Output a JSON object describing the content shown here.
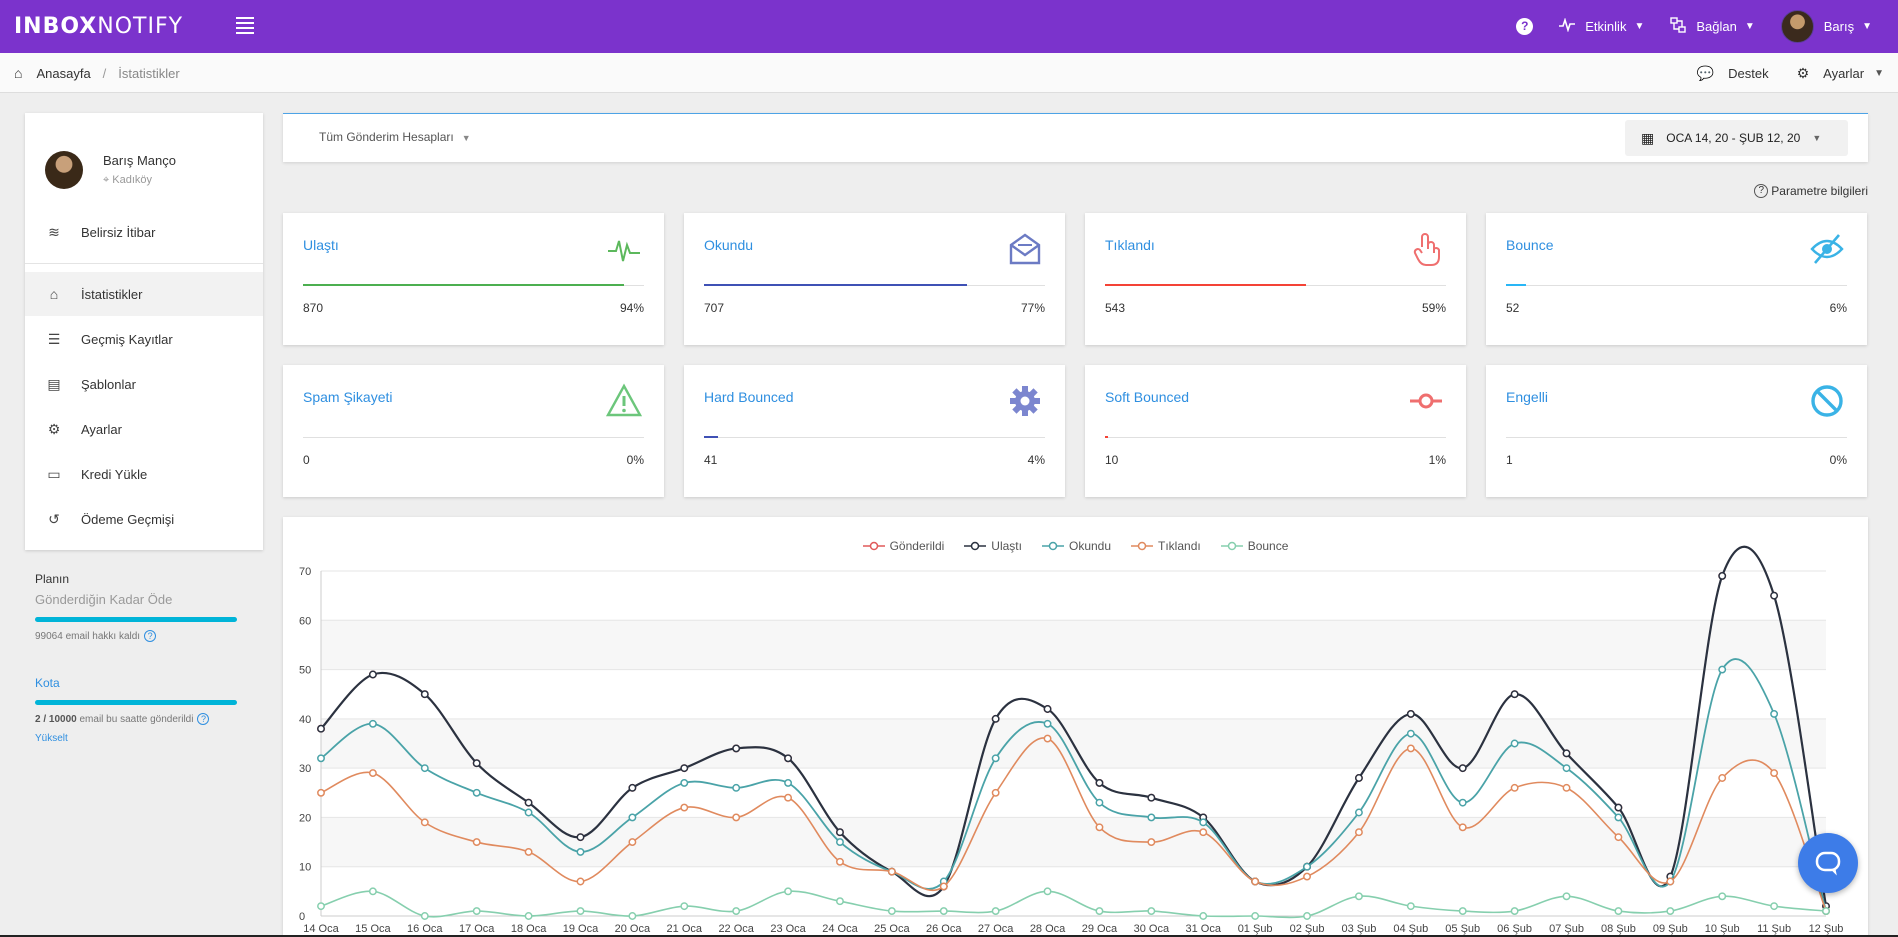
{
  "topbar": {
    "logo_bold": "INB",
    "logo_o": "O",
    "logo_x": "X",
    "logo_light": "NOTIFY",
    "help": "?",
    "activity_label": "Etkinlik",
    "connect_label": "Bağlan",
    "user_label": "Barış",
    "icons": [
      "menu-icon",
      "help-icon",
      "activity-icon",
      "connect-icon",
      "avatar",
      "chevron-down-icon"
    ]
  },
  "breadcrumb": {
    "home": "Anasayfa",
    "current": "İstatistikler",
    "support": "Destek",
    "settings": "Ayarlar"
  },
  "sidebar": {
    "user_name": "Barış Manço",
    "user_location": "Kadıköy",
    "items": [
      {
        "label": "Belirsiz İtibar",
        "icon": "reputation-icon",
        "glyph": "≋"
      },
      {
        "label": "İstatistikler",
        "icon": "home-icon",
        "glyph": "⌂"
      },
      {
        "label": "Geçmiş Kayıtlar",
        "icon": "list-icon",
        "glyph": "☰"
      },
      {
        "label": "Şablonlar",
        "icon": "template-icon",
        "glyph": "▤"
      },
      {
        "label": "Ayarlar",
        "icon": "gear-icon",
        "glyph": "⚙"
      },
      {
        "label": "Kredi Yükle",
        "icon": "credit-card-icon",
        "glyph": "▭"
      },
      {
        "label": "Ödeme Geçmişi",
        "icon": "history-icon",
        "glyph": "↺"
      }
    ],
    "active_index": 1
  },
  "plan": {
    "label": "Planın",
    "name": "Gönderdiğin Kadar Öde",
    "credits_text": "99064 email hakkı kaldı",
    "quota_label": "Kota",
    "quota_used": "2 / 10000",
    "quota_text": " email bu saatte gönderildi",
    "upgrade": "Yükselt",
    "credits_fill": 1.0,
    "quota_fill": 1.0
  },
  "filter": {
    "accounts": "Tüm Gönderim Hesapları",
    "date_range": "OCA 14, 20 - ŞUB 12, 20",
    "param_info": "Parametre bilgileri"
  },
  "stats": [
    {
      "title": "Ulaştı",
      "value": "870",
      "percent": "94%",
      "fill": 0.94,
      "color": "#4caf50",
      "icon": "pulse-icon"
    },
    {
      "title": "Okundu",
      "value": "707",
      "percent": "77%",
      "fill": 0.77,
      "color": "#3f51b5",
      "icon": "open-mail-icon"
    },
    {
      "title": "Tıklandı",
      "value": "543",
      "percent": "59%",
      "fill": 0.59,
      "color": "#f44336",
      "icon": "click-hand-icon"
    },
    {
      "title": "Bounce",
      "value": "52",
      "percent": "6%",
      "fill": 0.06,
      "color": "#29b6f6",
      "icon": "eye-off-icon"
    },
    {
      "title": "Spam Şikayeti",
      "value": "0",
      "percent": "0%",
      "fill": 0.0,
      "color": "#66bb6a",
      "icon": "warning-icon"
    },
    {
      "title": "Hard Bounced",
      "value": "41",
      "percent": "4%",
      "fill": 0.04,
      "color": "#3f51b5",
      "icon": "gear-icon"
    },
    {
      "title": "Soft Bounced",
      "value": "10",
      "percent": "1%",
      "fill": 0.01,
      "color": "#f44336",
      "icon": "commit-icon"
    },
    {
      "title": "Engelli",
      "value": "1",
      "percent": "0%",
      "fill": 0.0,
      "color": "#29b6f6",
      "icon": "block-icon"
    }
  ],
  "chart_data": {
    "type": "line",
    "x": [
      "14 Oca",
      "15 Oca",
      "16 Oca",
      "17 Oca",
      "18 Oca",
      "19 Oca",
      "20 Oca",
      "21 Oca",
      "22 Oca",
      "23 Oca",
      "24 Oca",
      "25 Oca",
      "26 Oca",
      "27 Oca",
      "28 Oca",
      "29 Oca",
      "30 Oca",
      "31 Oca",
      "01 Şub",
      "02 Şub",
      "03 Şub",
      "04 Şub",
      "05 Şub",
      "06 Şub",
      "07 Şub",
      "08 Şub",
      "09 Şub",
      "10 Şub",
      "11 Şub",
      "12 Şub"
    ],
    "ylim": [
      0,
      70
    ],
    "yticks": [
      0,
      10,
      20,
      30,
      40,
      50,
      60,
      70
    ],
    "grid": true,
    "legend_position": "top",
    "series": [
      {
        "name": "Gönderildi",
        "color": "#e05a5a",
        "values": [
          38,
          49,
          45,
          31,
          23,
          16,
          26,
          30,
          34,
          32,
          17,
          9,
          6,
          40,
          42,
          27,
          24,
          20,
          7,
          10,
          28,
          41,
          30,
          45,
          33,
          22,
          8,
          69,
          65,
          2
        ]
      },
      {
        "name": "Ulaştı",
        "color": "#2b3240",
        "values": [
          38,
          49,
          45,
          31,
          23,
          16,
          26,
          30,
          34,
          32,
          17,
          9,
          6,
          40,
          42,
          27,
          24,
          20,
          7,
          10,
          28,
          41,
          30,
          45,
          33,
          22,
          8,
          69,
          65,
          2
        ]
      },
      {
        "name": "Okundu",
        "color": "#4aa3a8",
        "values": [
          32,
          39,
          30,
          25,
          21,
          13,
          20,
          27,
          26,
          27,
          15,
          9,
          7,
          32,
          39,
          23,
          20,
          19,
          7,
          10,
          21,
          37,
          23,
          35,
          30,
          20,
          7,
          50,
          41,
          1
        ]
      },
      {
        "name": "Tıklandı",
        "color": "#e08a5e",
        "values": [
          25,
          29,
          19,
          15,
          13,
          7,
          15,
          22,
          20,
          24,
          11,
          9,
          6,
          25,
          36,
          18,
          15,
          17,
          7,
          8,
          17,
          34,
          18,
          26,
          26,
          16,
          7,
          28,
          29,
          1
        ]
      },
      {
        "name": "Bounce",
        "color": "#86cfae",
        "values": [
          2,
          5,
          0,
          1,
          0,
          1,
          0,
          2,
          1,
          5,
          3,
          1,
          1,
          1,
          5,
          1,
          1,
          0,
          0,
          0,
          4,
          2,
          1,
          1,
          4,
          1,
          1,
          4,
          2,
          1
        ]
      }
    ]
  }
}
